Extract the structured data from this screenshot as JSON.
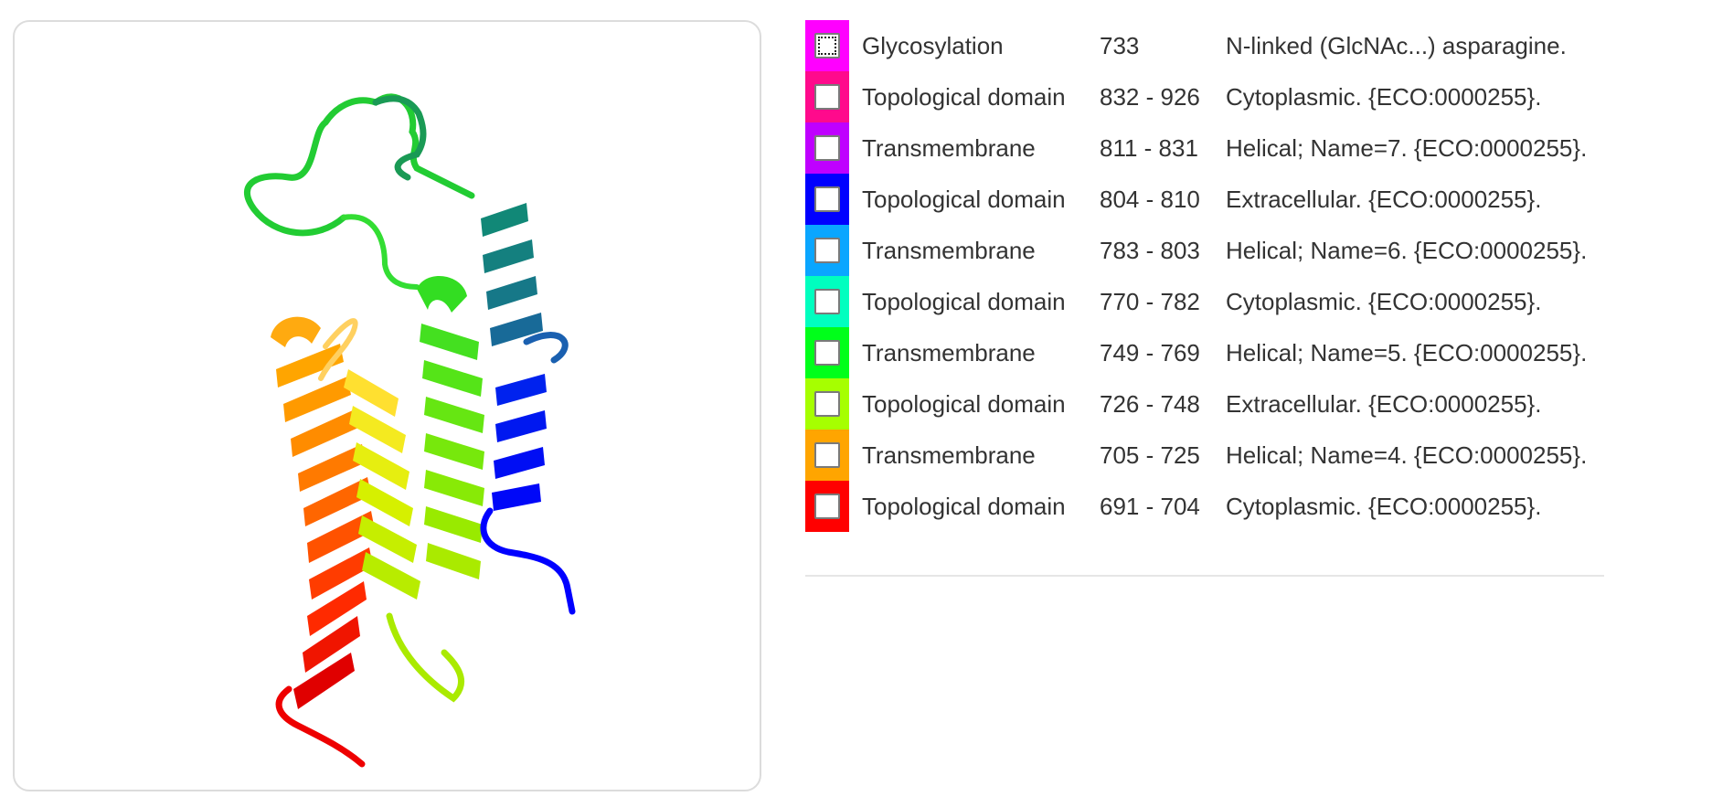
{
  "features": [
    {
      "type": "Glycosylation",
      "range": "733",
      "description": "N-linked (GlcNAc...) asparagine.",
      "color": "#ff00ff",
      "focused": true
    },
    {
      "type": "Topological domain",
      "range": "832 - 926",
      "description": "Cytoplasmic. {ECO:0000255}.",
      "color": "#ff0a8c",
      "focused": false
    },
    {
      "type": "Transmembrane",
      "range": "811 - 831",
      "description": "Helical; Name=7. {ECO:0000255}.",
      "color": "#bf00ff",
      "focused": false
    },
    {
      "type": "Topological domain",
      "range": "804 - 810",
      "description": "Extracellular. {ECO:0000255}.",
      "color": "#0000ff",
      "focused": false
    },
    {
      "type": "Transmembrane",
      "range": "783 - 803",
      "description": "Helical; Name=6. {ECO:0000255}.",
      "color": "#0aa6ff",
      "focused": false
    },
    {
      "type": "Topological domain",
      "range": "770 - 782",
      "description": "Cytoplasmic. {ECO:0000255}.",
      "color": "#00ffbf",
      "focused": false
    },
    {
      "type": "Transmembrane",
      "range": "749 - 769",
      "description": "Helical; Name=5. {ECO:0000255}.",
      "color": "#00ff1a",
      "focused": false
    },
    {
      "type": "Topological domain",
      "range": "726 - 748",
      "description": "Extracellular. {ECO:0000255}.",
      "color": "#a6ff00",
      "focused": false
    },
    {
      "type": "Transmembrane",
      "range": "705 - 725",
      "description": "Helical; Name=4. {ECO:0000255}.",
      "color": "#ffa500",
      "focused": false
    },
    {
      "type": "Topological domain",
      "range": "691 - 704",
      "description": "Cytoplasmic. {ECO:0000255}.",
      "color": "#ff0000",
      "focused": false
    }
  ]
}
